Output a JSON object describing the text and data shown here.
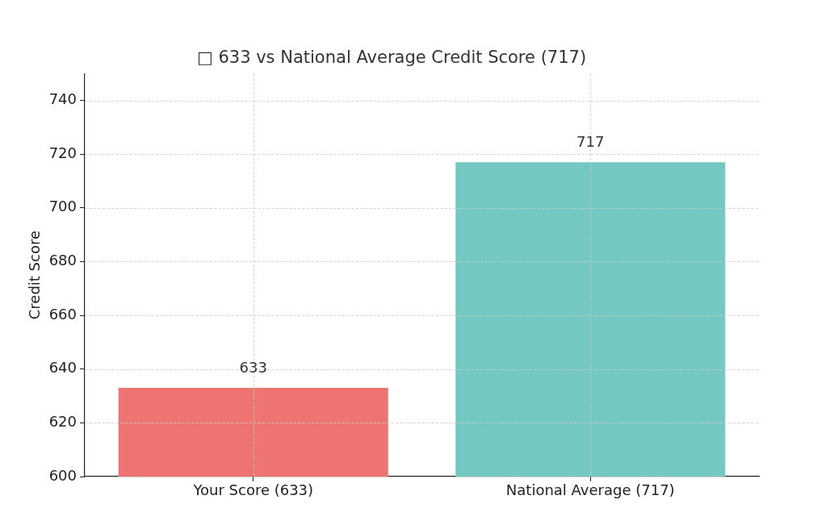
{
  "chart_data": {
    "type": "bar",
    "title": "□ 633 vs National Average Credit Score (717)",
    "ylabel": "Credit Score",
    "categories": [
      "Your Score (633)",
      "National Average (717)"
    ],
    "values": [
      633,
      717
    ],
    "colors": [
      "#ed7470",
      "#73c9c1"
    ],
    "ylim": [
      600,
      750
    ],
    "yticks": [
      600,
      620,
      640,
      660,
      680,
      700,
      720,
      740
    ],
    "grid": true,
    "legend": false,
    "data_labels": true
  }
}
